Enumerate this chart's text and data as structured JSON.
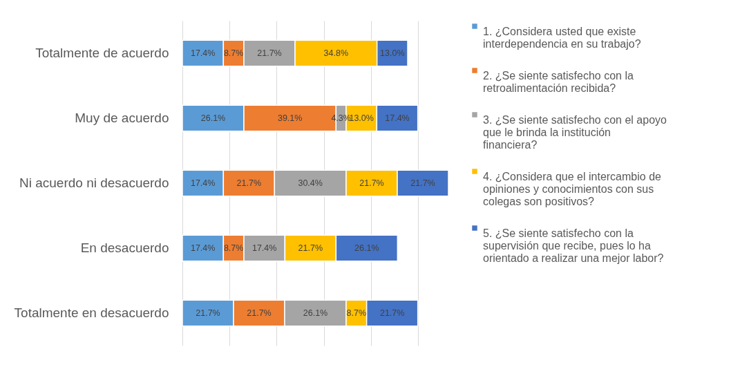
{
  "chart_data": {
    "type": "bar",
    "orientation": "horizontal",
    "stacked": true,
    "categories": [
      "Totalmente de acuerdo",
      "Muy de acuerdo",
      "Ni acuerdo ni desacuerdo",
      "En desacuerdo",
      "Totalmente en desacuerdo"
    ],
    "series": [
      {
        "name": "1. ¿Considera usted que existe interdependencia en su trabajo?",
        "color": "#5b9bd5",
        "values": [
          17.4,
          26.1,
          17.4,
          17.4,
          21.7
        ],
        "value_labels": [
          "17.4%",
          "26.1%",
          "17.4%",
          "17.4%",
          "21.7%"
        ]
      },
      {
        "name": "2. ¿Se siente satisfecho con la retroalimentación recibida?",
        "color": "#ed7d31",
        "values": [
          8.7,
          39.1,
          21.7,
          8.7,
          21.7
        ],
        "value_labels": [
          "8.7%",
          "39.1%",
          "21.7%",
          "8.7%",
          "21.7%"
        ]
      },
      {
        "name": "3. ¿Se siente satisfecho con el apoyo que le brinda la institución financiera?",
        "color": "#a5a5a5",
        "values": [
          21.7,
          4.3,
          30.4,
          17.4,
          26.1
        ],
        "value_labels": [
          "21.7%",
          "4.3%",
          "30.4%",
          "17.4%",
          "26.1%"
        ]
      },
      {
        "name": "4. ¿Considera que el intercambio de opiniones y conocimientos con sus colegas son positivos?",
        "color": "#ffc000",
        "values": [
          34.8,
          13.0,
          21.7,
          21.7,
          8.7
        ],
        "value_labels": [
          "34.8%",
          "13.0%",
          "21.7%",
          "21.7%",
          "8.7%"
        ]
      },
      {
        "name": "5. ¿Se siente satisfecho con la supervisión que recibe, pues lo ha orientado a realizar una mejor labor?",
        "color": "#4472c4",
        "values": [
          13.0,
          17.4,
          21.7,
          26.1,
          21.7
        ],
        "value_labels": [
          "13.0%",
          "17.4%",
          "21.7%",
          "26.1%",
          "21.7%"
        ]
      }
    ],
    "grid": "x",
    "legend": "right",
    "tick_labels": "y"
  }
}
